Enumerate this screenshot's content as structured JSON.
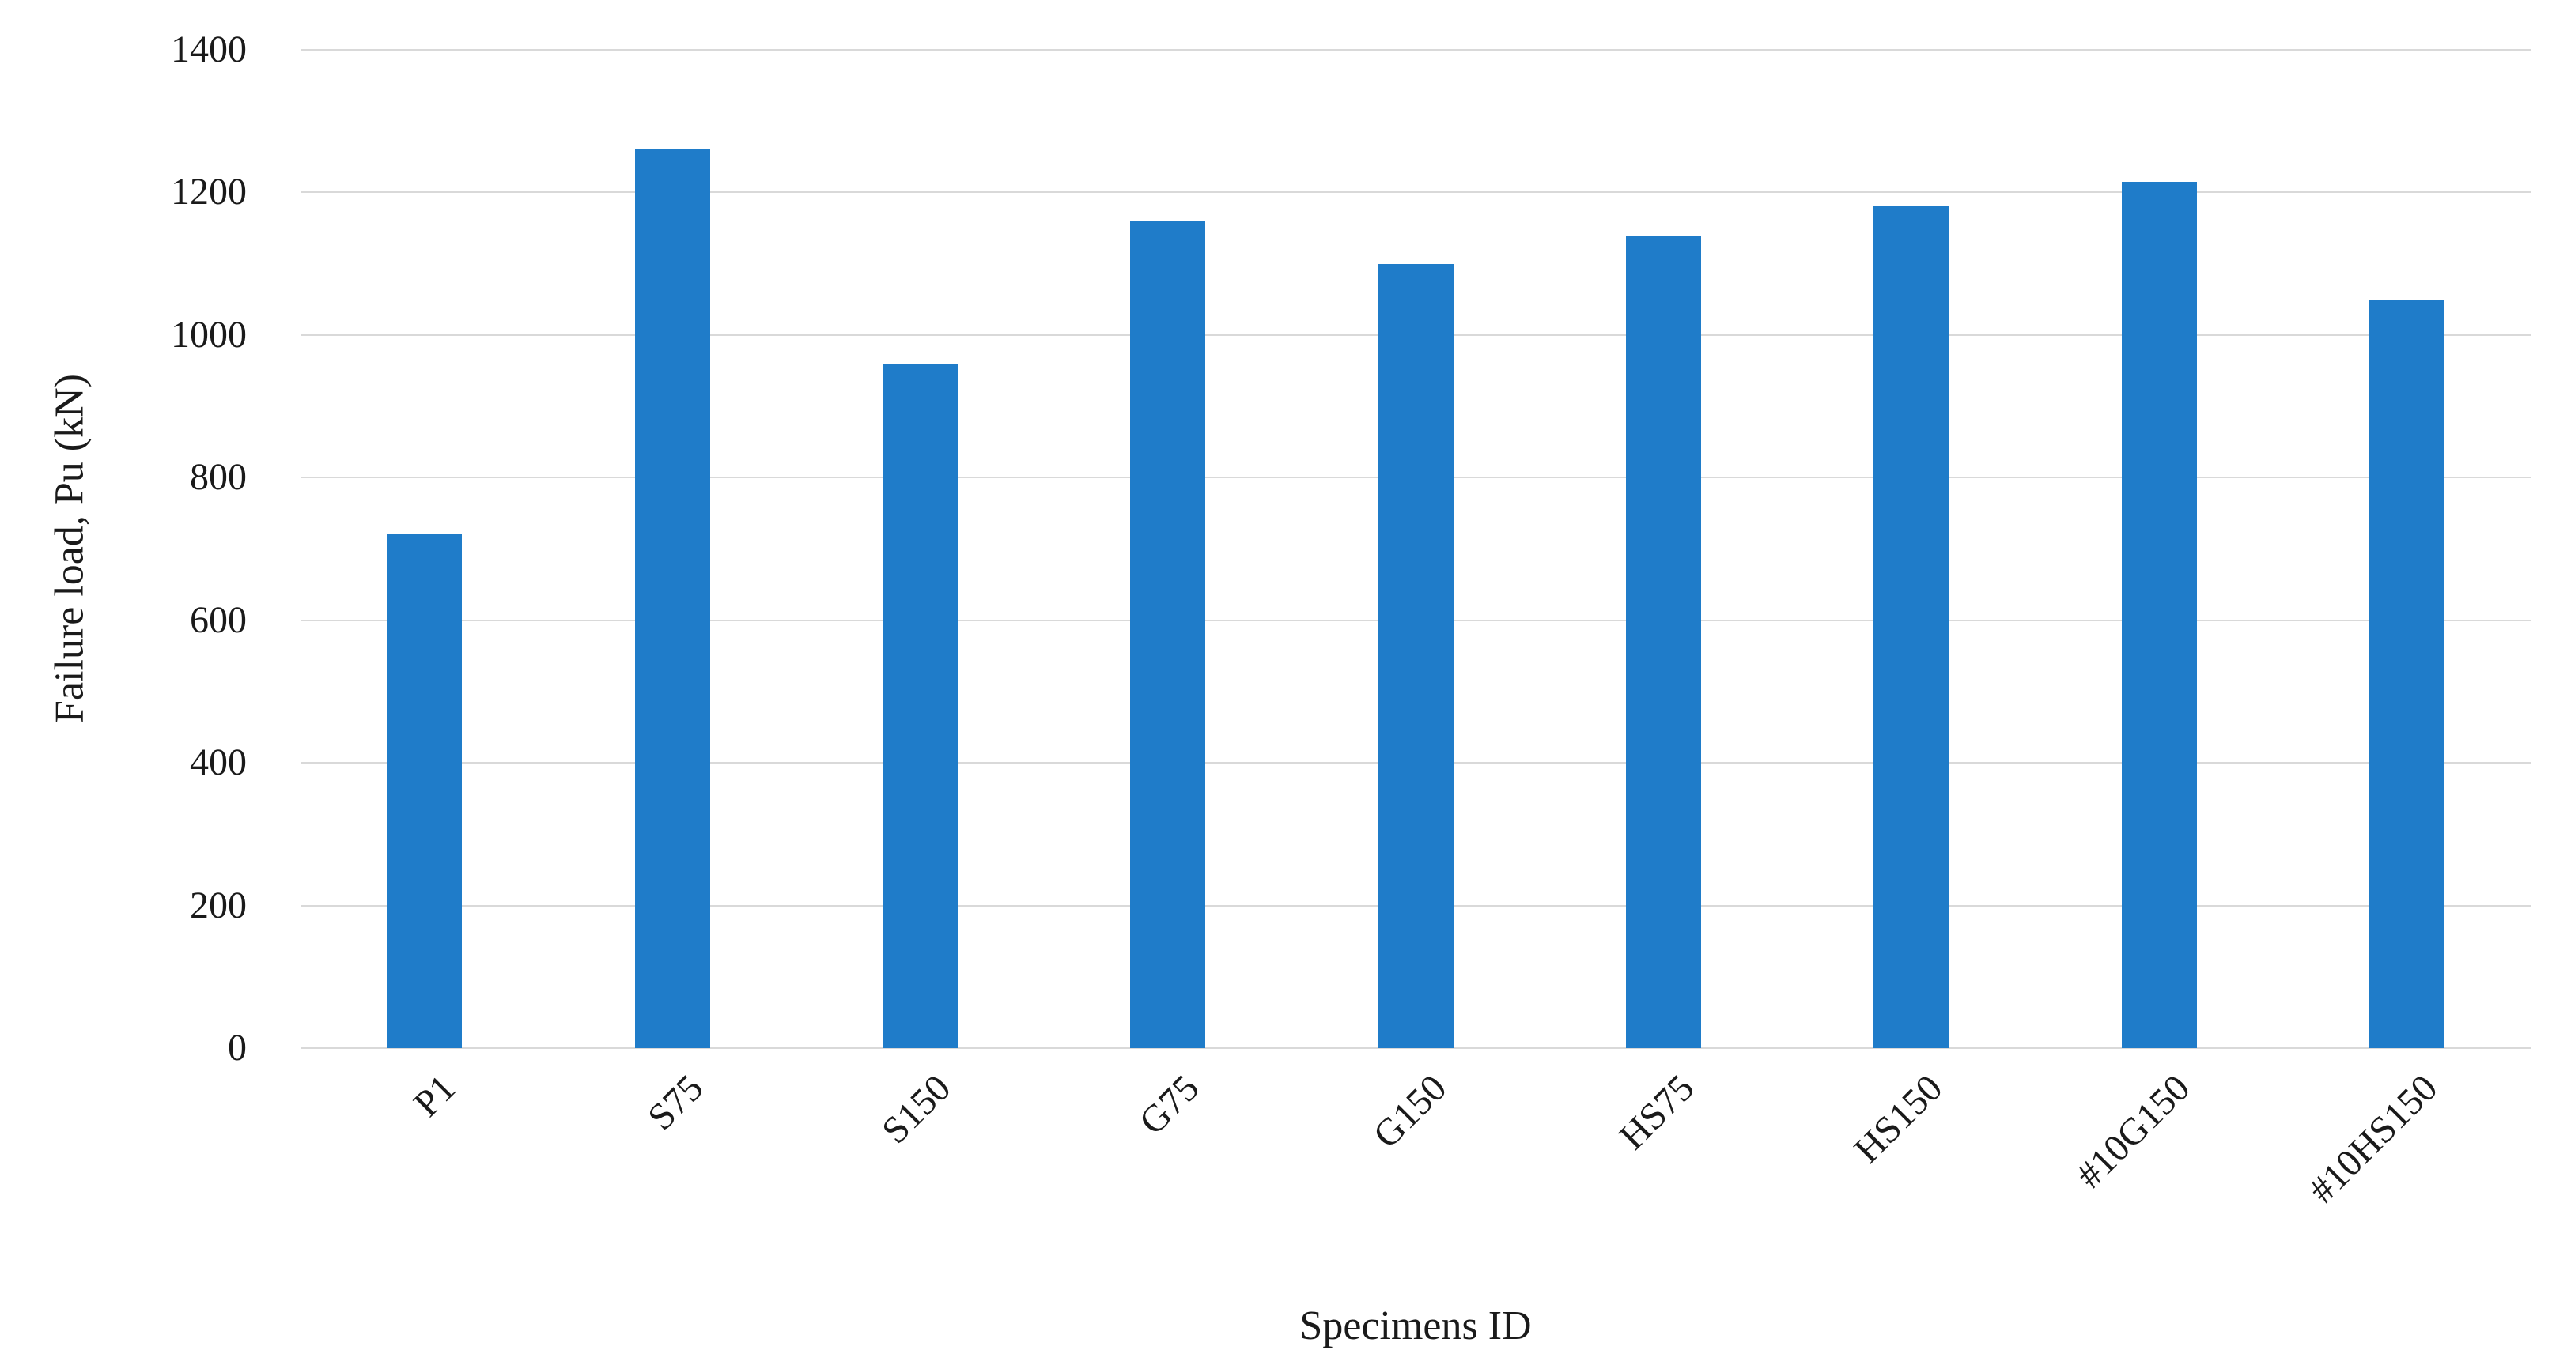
{
  "chart_data": {
    "type": "bar",
    "title": "",
    "xlabel": "Specimens ID",
    "ylabel": "Failure load, Pu (kN)",
    "categories": [
      "P1",
      "S75",
      "S150",
      "G75",
      "G150",
      "HS75",
      "HS150",
      "#10G150",
      "#10HS150"
    ],
    "values": [
      720,
      1260,
      960,
      1160,
      1100,
      1140,
      1180,
      1215,
      1050
    ],
    "ylim": [
      0,
      1400
    ],
    "ytick_step": 200,
    "ytick_labels": [
      "0",
      "200",
      "400",
      "600",
      "800",
      "1000",
      "1200",
      "1400"
    ],
    "grid": true,
    "legend_position": "none",
    "bar_color": "#1f7cc9",
    "gridline_color": "#d9d9d9",
    "text_color": "#1a1a1a"
  }
}
